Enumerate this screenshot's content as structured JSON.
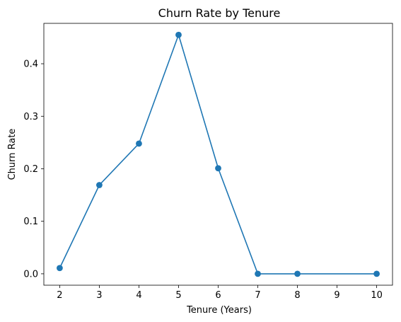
{
  "chart_data": {
    "type": "line",
    "title": "Churn Rate by Tenure",
    "xlabel": "Tenure (Years)",
    "ylabel": "Churn Rate",
    "x_ticks": [
      2,
      3,
      4,
      5,
      6,
      7,
      8,
      9,
      10
    ],
    "y_ticks": [
      0.0,
      0.1,
      0.2,
      0.3,
      0.4
    ],
    "y_tick_labels": [
      "0.0",
      "0.1",
      "0.2",
      "0.3",
      "0.4"
    ],
    "xlim": [
      1.6,
      10.4
    ],
    "ylim": [
      -0.0217,
      0.4769
    ],
    "grid": false,
    "series": [
      {
        "color": "#1f77b4",
        "marker": "circle",
        "x": [
          2,
          3,
          4,
          5,
          6,
          7,
          8,
          10
        ],
        "y": [
          0.011,
          0.169,
          0.248,
          0.455,
          0.201,
          0.0,
          0.0,
          0.0
        ]
      }
    ]
  }
}
